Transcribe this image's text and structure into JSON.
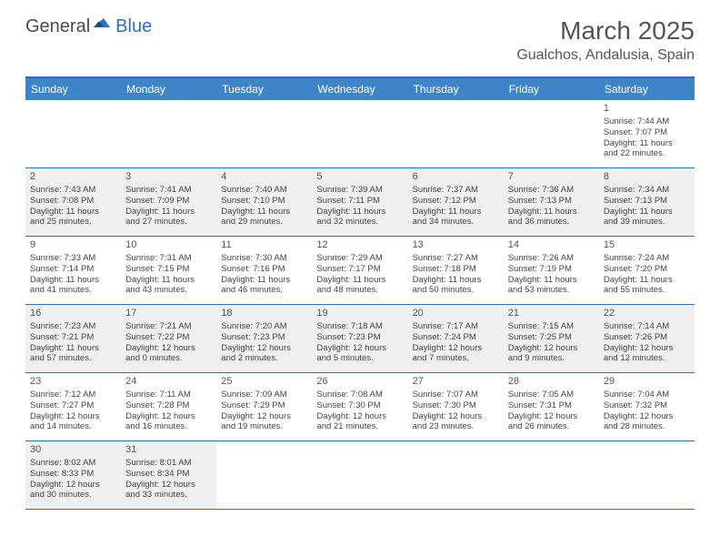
{
  "brand": {
    "part1": "General",
    "part2": "Blue"
  },
  "title": "March 2025",
  "location": "Gualchos, Andalusia, Spain",
  "colors": {
    "header_bg": "#3d85c6",
    "border": "#2d72b5",
    "shaded": "#f0f0f0",
    "text": "#444444"
  },
  "day_headers": [
    "Sunday",
    "Monday",
    "Tuesday",
    "Wednesday",
    "Thursday",
    "Friday",
    "Saturday"
  ],
  "weeks": [
    [
      {
        "empty": true
      },
      {
        "empty": true
      },
      {
        "empty": true
      },
      {
        "empty": true
      },
      {
        "empty": true
      },
      {
        "empty": true
      },
      {
        "n": "1",
        "sunrise": "Sunrise: 7:44 AM",
        "sunset": "Sunset: 7:07 PM",
        "day1": "Daylight: 11 hours",
        "day2": "and 22 minutes."
      }
    ],
    [
      {
        "n": "2",
        "sunrise": "Sunrise: 7:43 AM",
        "sunset": "Sunset: 7:08 PM",
        "day1": "Daylight: 11 hours",
        "day2": "and 25 minutes.",
        "shaded": true
      },
      {
        "n": "3",
        "sunrise": "Sunrise: 7:41 AM",
        "sunset": "Sunset: 7:09 PM",
        "day1": "Daylight: 11 hours",
        "day2": "and 27 minutes.",
        "shaded": true
      },
      {
        "n": "4",
        "sunrise": "Sunrise: 7:40 AM",
        "sunset": "Sunset: 7:10 PM",
        "day1": "Daylight: 11 hours",
        "day2": "and 29 minutes.",
        "shaded": true
      },
      {
        "n": "5",
        "sunrise": "Sunrise: 7:39 AM",
        "sunset": "Sunset: 7:11 PM",
        "day1": "Daylight: 11 hours",
        "day2": "and 32 minutes.",
        "shaded": true
      },
      {
        "n": "6",
        "sunrise": "Sunrise: 7:37 AM",
        "sunset": "Sunset: 7:12 PM",
        "day1": "Daylight: 11 hours",
        "day2": "and 34 minutes.",
        "shaded": true
      },
      {
        "n": "7",
        "sunrise": "Sunrise: 7:36 AM",
        "sunset": "Sunset: 7:13 PM",
        "day1": "Daylight: 11 hours",
        "day2": "and 36 minutes.",
        "shaded": true
      },
      {
        "n": "8",
        "sunrise": "Sunrise: 7:34 AM",
        "sunset": "Sunset: 7:13 PM",
        "day1": "Daylight: 11 hours",
        "day2": "and 39 minutes.",
        "shaded": true
      }
    ],
    [
      {
        "n": "9",
        "sunrise": "Sunrise: 7:33 AM",
        "sunset": "Sunset: 7:14 PM",
        "day1": "Daylight: 11 hours",
        "day2": "and 41 minutes."
      },
      {
        "n": "10",
        "sunrise": "Sunrise: 7:31 AM",
        "sunset": "Sunset: 7:15 PM",
        "day1": "Daylight: 11 hours",
        "day2": "and 43 minutes."
      },
      {
        "n": "11",
        "sunrise": "Sunrise: 7:30 AM",
        "sunset": "Sunset: 7:16 PM",
        "day1": "Daylight: 11 hours",
        "day2": "and 46 minutes."
      },
      {
        "n": "12",
        "sunrise": "Sunrise: 7:29 AM",
        "sunset": "Sunset: 7:17 PM",
        "day1": "Daylight: 11 hours",
        "day2": "and 48 minutes."
      },
      {
        "n": "13",
        "sunrise": "Sunrise: 7:27 AM",
        "sunset": "Sunset: 7:18 PM",
        "day1": "Daylight: 11 hours",
        "day2": "and 50 minutes."
      },
      {
        "n": "14",
        "sunrise": "Sunrise: 7:26 AM",
        "sunset": "Sunset: 7:19 PM",
        "day1": "Daylight: 11 hours",
        "day2": "and 53 minutes."
      },
      {
        "n": "15",
        "sunrise": "Sunrise: 7:24 AM",
        "sunset": "Sunset: 7:20 PM",
        "day1": "Daylight: 11 hours",
        "day2": "and 55 minutes."
      }
    ],
    [
      {
        "n": "16",
        "sunrise": "Sunrise: 7:23 AM",
        "sunset": "Sunset: 7:21 PM",
        "day1": "Daylight: 11 hours",
        "day2": "and 57 minutes.",
        "shaded": true
      },
      {
        "n": "17",
        "sunrise": "Sunrise: 7:21 AM",
        "sunset": "Sunset: 7:22 PM",
        "day1": "Daylight: 12 hours",
        "day2": "and 0 minutes.",
        "shaded": true
      },
      {
        "n": "18",
        "sunrise": "Sunrise: 7:20 AM",
        "sunset": "Sunset: 7:23 PM",
        "day1": "Daylight: 12 hours",
        "day2": "and 2 minutes.",
        "shaded": true
      },
      {
        "n": "19",
        "sunrise": "Sunrise: 7:18 AM",
        "sunset": "Sunset: 7:23 PM",
        "day1": "Daylight: 12 hours",
        "day2": "and 5 minutes.",
        "shaded": true
      },
      {
        "n": "20",
        "sunrise": "Sunrise: 7:17 AM",
        "sunset": "Sunset: 7:24 PM",
        "day1": "Daylight: 12 hours",
        "day2": "and 7 minutes.",
        "shaded": true
      },
      {
        "n": "21",
        "sunrise": "Sunrise: 7:15 AM",
        "sunset": "Sunset: 7:25 PM",
        "day1": "Daylight: 12 hours",
        "day2": "and 9 minutes.",
        "shaded": true
      },
      {
        "n": "22",
        "sunrise": "Sunrise: 7:14 AM",
        "sunset": "Sunset: 7:26 PM",
        "day1": "Daylight: 12 hours",
        "day2": "and 12 minutes.",
        "shaded": true
      }
    ],
    [
      {
        "n": "23",
        "sunrise": "Sunrise: 7:12 AM",
        "sunset": "Sunset: 7:27 PM",
        "day1": "Daylight: 12 hours",
        "day2": "and 14 minutes."
      },
      {
        "n": "24",
        "sunrise": "Sunrise: 7:11 AM",
        "sunset": "Sunset: 7:28 PM",
        "day1": "Daylight: 12 hours",
        "day2": "and 16 minutes."
      },
      {
        "n": "25",
        "sunrise": "Sunrise: 7:09 AM",
        "sunset": "Sunset: 7:29 PM",
        "day1": "Daylight: 12 hours",
        "day2": "and 19 minutes."
      },
      {
        "n": "26",
        "sunrise": "Sunrise: 7:08 AM",
        "sunset": "Sunset: 7:30 PM",
        "day1": "Daylight: 12 hours",
        "day2": "and 21 minutes."
      },
      {
        "n": "27",
        "sunrise": "Sunrise: 7:07 AM",
        "sunset": "Sunset: 7:30 PM",
        "day1": "Daylight: 12 hours",
        "day2": "and 23 minutes."
      },
      {
        "n": "28",
        "sunrise": "Sunrise: 7:05 AM",
        "sunset": "Sunset: 7:31 PM",
        "day1": "Daylight: 12 hours",
        "day2": "and 26 minutes."
      },
      {
        "n": "29",
        "sunrise": "Sunrise: 7:04 AM",
        "sunset": "Sunset: 7:32 PM",
        "day1": "Daylight: 12 hours",
        "day2": "and 28 minutes."
      }
    ],
    [
      {
        "n": "30",
        "sunrise": "Sunrise: 8:02 AM",
        "sunset": "Sunset: 8:33 PM",
        "day1": "Daylight: 12 hours",
        "day2": "and 30 minutes.",
        "shaded": true
      },
      {
        "n": "31",
        "sunrise": "Sunrise: 8:01 AM",
        "sunset": "Sunset: 8:34 PM",
        "day1": "Daylight: 12 hours",
        "day2": "and 33 minutes.",
        "shaded": true
      },
      {
        "empty": true
      },
      {
        "empty": true
      },
      {
        "empty": true
      },
      {
        "empty": true
      },
      {
        "empty": true
      }
    ]
  ]
}
